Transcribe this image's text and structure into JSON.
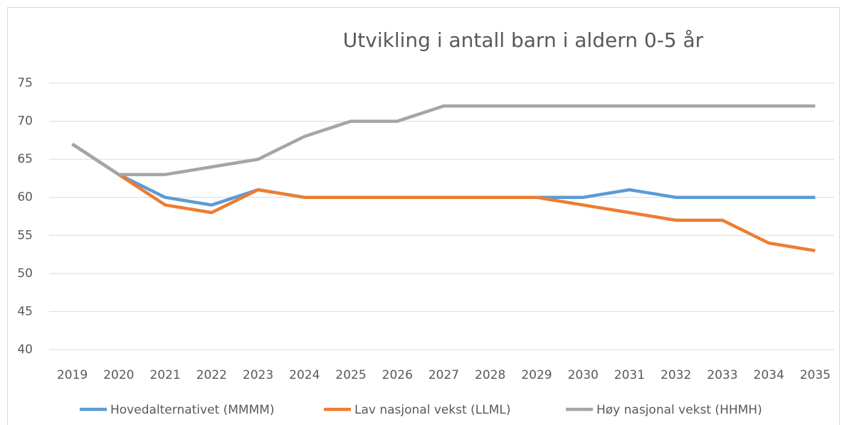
{
  "chart_data": {
    "type": "line",
    "title": "Utvikling i antall barn i aldern 0-5 år",
    "categories": [
      "2019",
      "2020",
      "2021",
      "2022",
      "2023",
      "2024",
      "2025",
      "2026",
      "2027",
      "2028",
      "2029",
      "2030",
      "2031",
      "2032",
      "2033",
      "2034",
      "2035"
    ],
    "series": [
      {
        "name": "Hovedalternativet (MMMM)",
        "color": "#5b9bd5",
        "values": [
          67,
          63,
          60,
          59,
          61,
          60,
          60,
          60,
          60,
          60,
          60,
          60,
          61,
          60,
          60,
          60,
          60
        ]
      },
      {
        "name": "Lav nasjonal vekst (LLML)",
        "color": "#ed7d31",
        "values": [
          67,
          63,
          59,
          58,
          61,
          60,
          60,
          60,
          60,
          60,
          60,
          59,
          58,
          57,
          57,
          54,
          53
        ]
      },
      {
        "name": "Høy nasjonal vekst (HHMH)",
        "color": "#a5a5a5",
        "values": [
          67,
          63,
          63,
          64,
          65,
          68,
          70,
          70,
          72,
          72,
          72,
          72,
          72,
          72,
          72,
          72,
          72
        ]
      }
    ],
    "ylim": [
      40,
      75
    ],
    "yticks": [
      40,
      45,
      50,
      55,
      60,
      65,
      70,
      75
    ],
    "grid": true,
    "legend": "bottom"
  }
}
